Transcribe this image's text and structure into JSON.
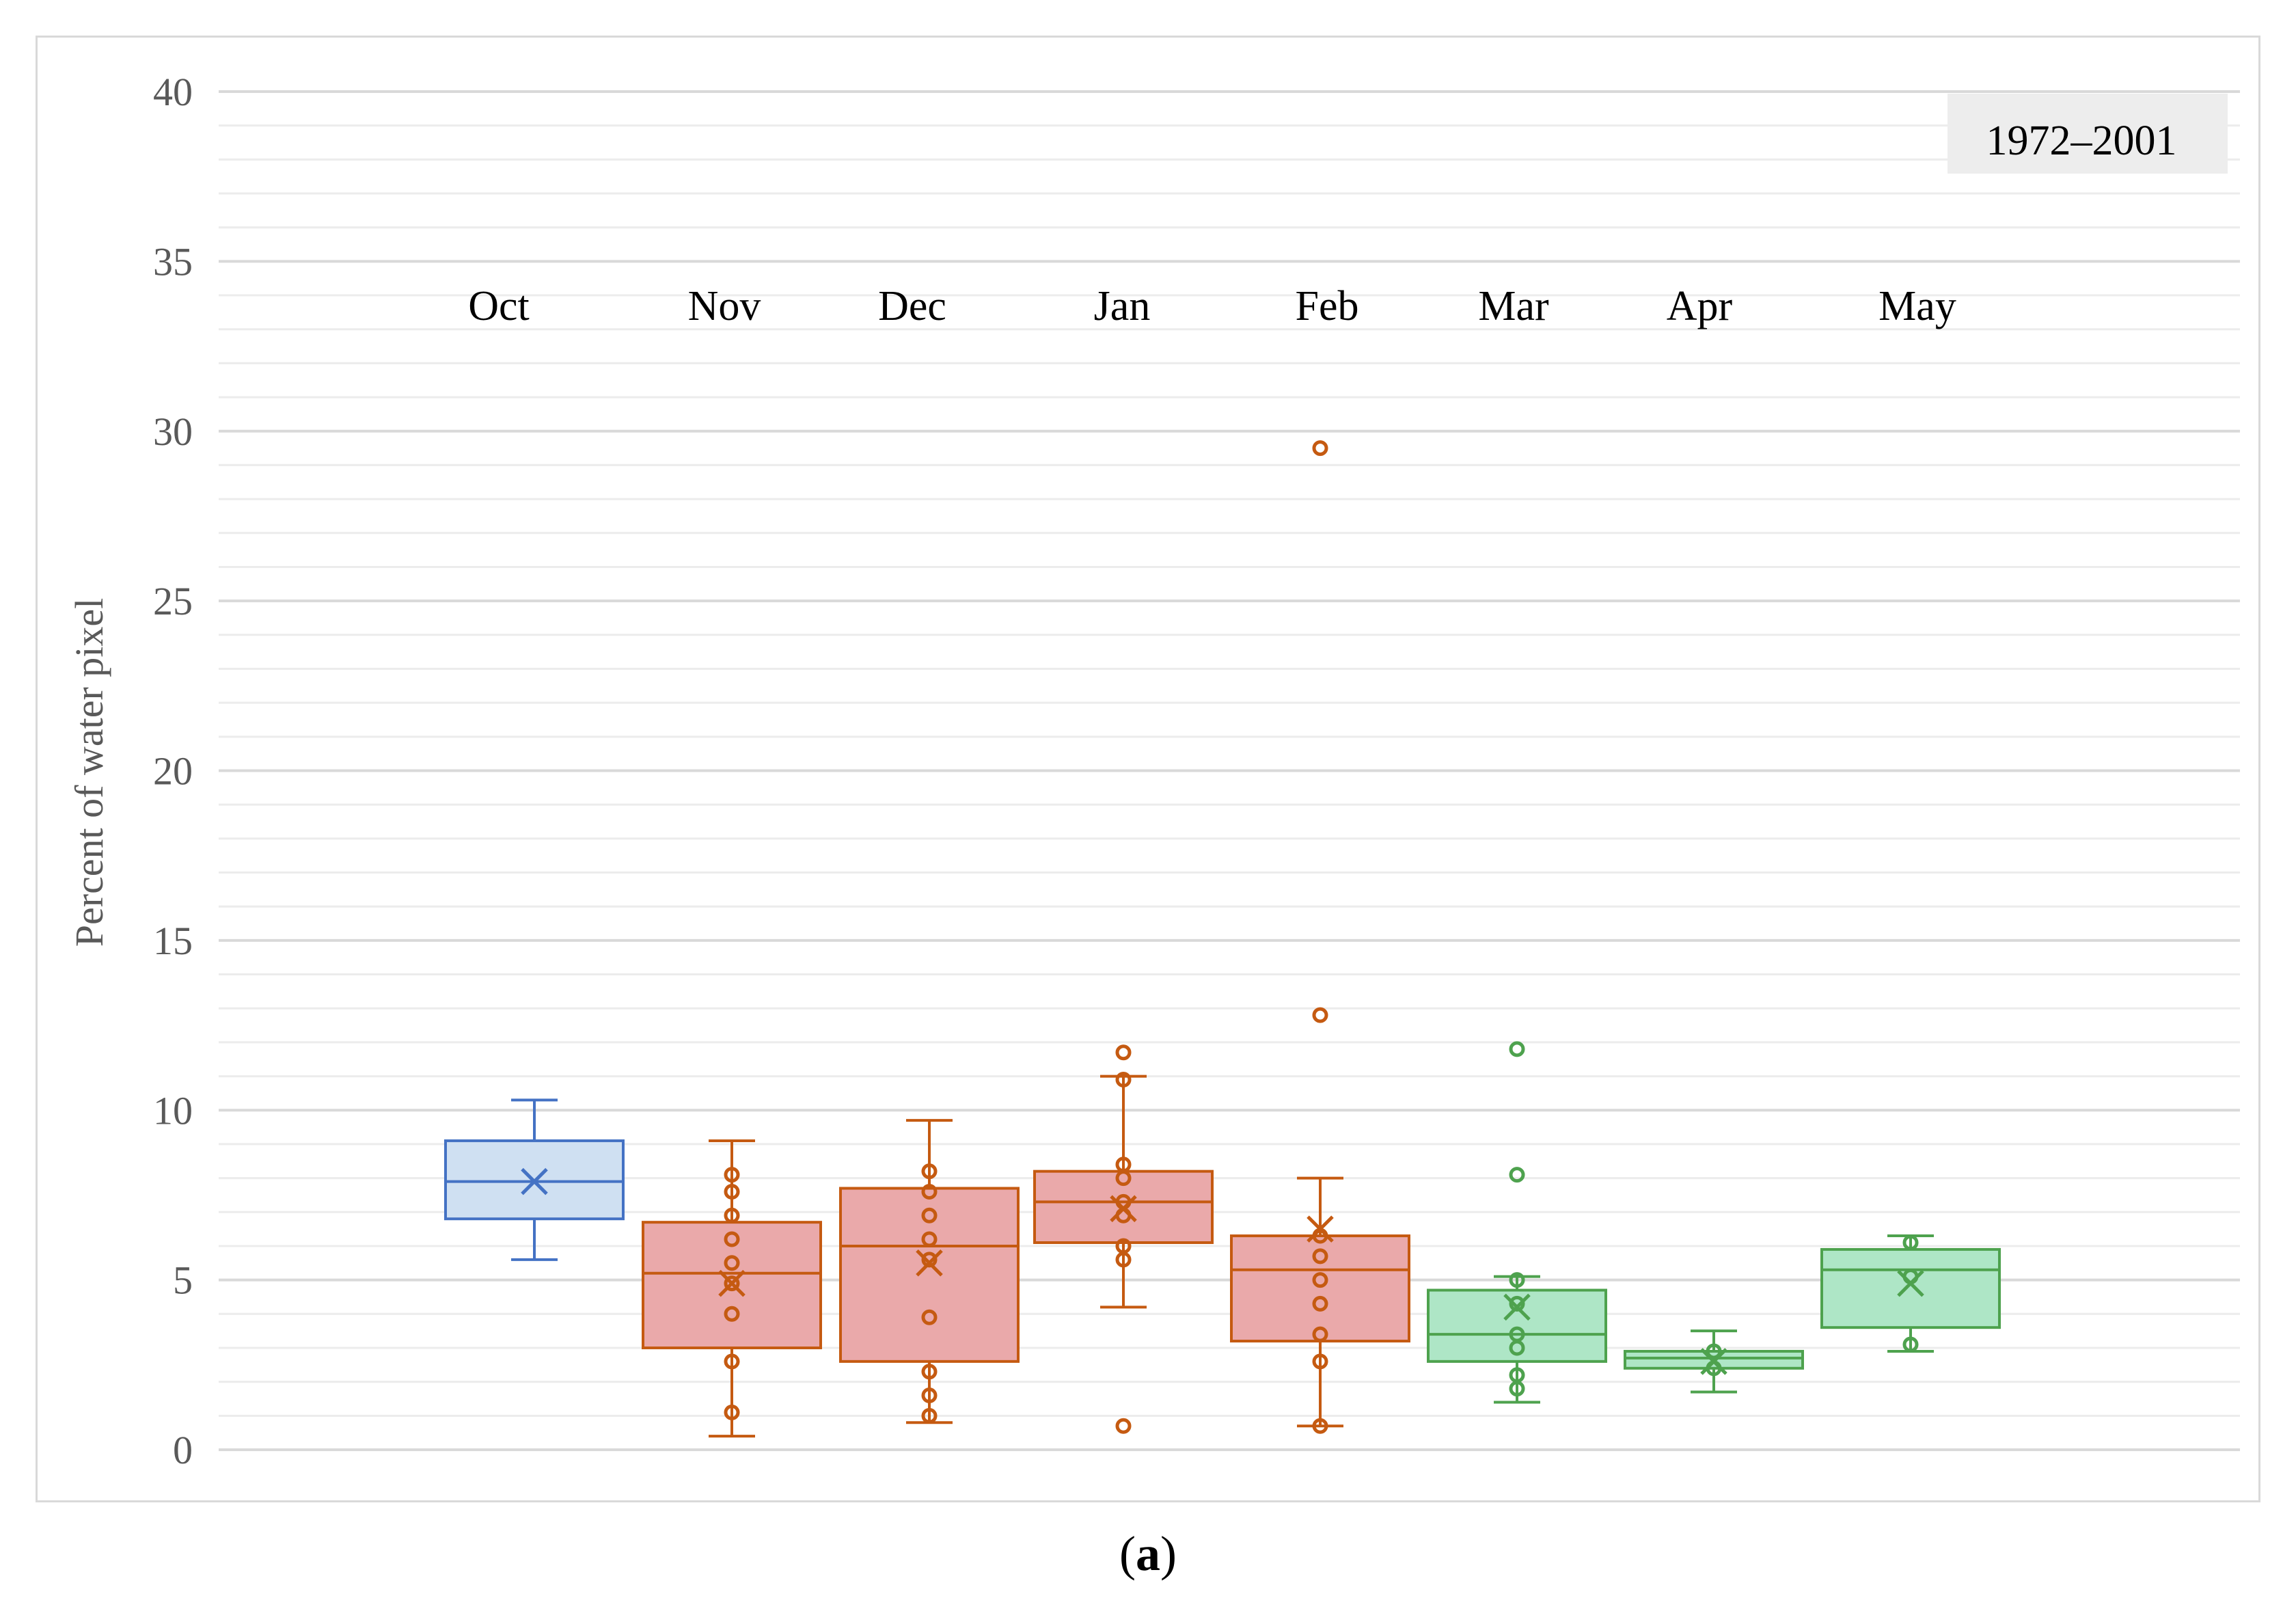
{
  "caption": {
    "open": "(",
    "letter": "a",
    "close": ")"
  },
  "chart_data": {
    "type": "box",
    "title": "",
    "legend_label": "1972–2001",
    "ylabel": "Percent of water pixel",
    "xlabel": "",
    "ylim": [
      0,
      40
    ],
    "yticks": [
      0,
      5,
      10,
      15,
      20,
      25,
      30,
      35,
      40
    ],
    "minor_step": 1,
    "grid": true,
    "colors": {
      "blue_stroke": "#4472c4",
      "blue_fill": "#cfe0f2",
      "red_stroke": "#c55a11",
      "red_fill": "#eaa9aa",
      "green_stroke": "#4ea24e",
      "green_fill": "#aee6c6",
      "grid_major": "#d9d9d9",
      "grid_minor": "#ececec",
      "axis_text": "#595959"
    },
    "categories": [
      "Oct",
      "Nov",
      "Dec",
      "Jan",
      "Feb",
      "Mar",
      "Apr",
      "May"
    ],
    "boxes": [
      {
        "name": "Oct",
        "color": "blue",
        "whisker_low": 5.6,
        "q1": 6.8,
        "median": 7.9,
        "q3": 9.1,
        "whisker_high": 10.3,
        "mean": 7.9,
        "points": []
      },
      {
        "name": "Nov",
        "color": "red",
        "whisker_low": 0.4,
        "q1": 3.0,
        "median": 5.2,
        "q3": 6.7,
        "whisker_high": 9.1,
        "mean": 4.9,
        "points": [
          1.1,
          2.6,
          4.0,
          4.9,
          5.5,
          6.2,
          6.9,
          7.6,
          8.1
        ]
      },
      {
        "name": "Dec",
        "color": "red",
        "whisker_low": 0.8,
        "q1": 2.6,
        "median": 6.0,
        "q3": 7.7,
        "whisker_high": 9.7,
        "mean": 5.5,
        "points": [
          1.0,
          1.6,
          2.3,
          3.9,
          5.6,
          6.2,
          6.9,
          7.6,
          8.2
        ]
      },
      {
        "name": "Jan",
        "color": "red",
        "whisker_low": 4.2,
        "q1": 6.1,
        "median": 7.3,
        "q3": 8.2,
        "whisker_high": 11.0,
        "mean": 7.1,
        "points": [
          0.7,
          5.6,
          6.0,
          6.9,
          7.3,
          8.0,
          8.4,
          10.9,
          11.7
        ]
      },
      {
        "name": "Feb",
        "color": "red",
        "whisker_low": 0.7,
        "q1": 3.2,
        "median": 5.3,
        "q3": 6.3,
        "whisker_high": 8.0,
        "mean": 6.5,
        "points": [
          0.7,
          2.6,
          3.4,
          4.3,
          5.0,
          5.7,
          6.3,
          12.8,
          29.5
        ]
      },
      {
        "name": "Mar",
        "color": "green",
        "whisker_low": 1.4,
        "q1": 2.6,
        "median": 3.4,
        "q3": 4.7,
        "whisker_high": 5.1,
        "mean": 4.2,
        "points": [
          1.8,
          2.2,
          3.0,
          3.4,
          4.3,
          5.0,
          8.1,
          11.8
        ]
      },
      {
        "name": "Apr",
        "color": "green",
        "whisker_low": 1.7,
        "q1": 2.4,
        "median": 2.7,
        "q3": 2.9,
        "whisker_high": 3.5,
        "mean": 2.6,
        "points": [
          2.4,
          2.9
        ]
      },
      {
        "name": "May",
        "color": "green",
        "whisker_low": 2.9,
        "q1": 3.6,
        "median": 5.3,
        "q3": 5.9,
        "whisker_high": 6.3,
        "mean": 4.9,
        "points": [
          3.1,
          5.1,
          6.1
        ]
      }
    ]
  }
}
